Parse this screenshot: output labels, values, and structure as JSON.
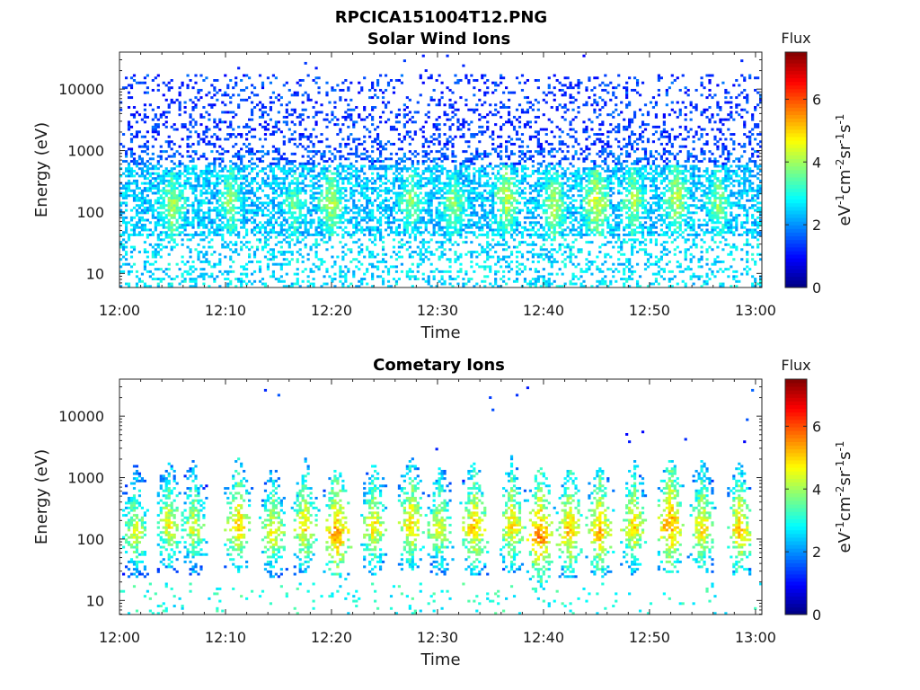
{
  "figure_title": "RPCICA151004T12.PNG",
  "chart_data": [
    {
      "type": "heatmap",
      "title": "Solar Wind Ions",
      "xlabel": "Time",
      "ylabel": "Energy (eV)",
      "x_ticks": [
        "12:00",
        "12:10",
        "12:20",
        "12:30",
        "12:40",
        "12:50",
        "13:00"
      ],
      "x_range_minutes": [
        0,
        60.6
      ],
      "y_scale": "log",
      "y_ticks": [
        10,
        100,
        1000,
        10000
      ],
      "y_tick_labels": [
        "10",
        "100",
        "1000",
        "10000"
      ],
      "y_range": [
        5.9,
        40000
      ],
      "colorbar": {
        "title": "Flux",
        "label_parts": [
          "eV",
          "-1",
          "cm",
          "-2",
          "sr",
          "-1",
          "s",
          "-1"
        ],
        "range": [
          0,
          7.5
        ],
        "ticks": [
          0,
          2,
          4,
          6
        ],
        "tick_labels": [
          "0",
          "2",
          "4",
          "6"
        ],
        "colormap": "jet"
      },
      "description": "sparse blue counts at 1000-30000 eV, cyan-green bands 30-600 eV",
      "bursts": [
        {
          "t": 5.0,
          "e": 120,
          "amp": 4.2
        },
        {
          "t": 10.5,
          "e": 150,
          "amp": 4.0
        },
        {
          "t": 16.5,
          "e": 130,
          "amp": 3.8
        },
        {
          "t": 20.0,
          "e": 140,
          "amp": 4.2
        },
        {
          "t": 27.5,
          "e": 150,
          "amp": 4.0
        },
        {
          "t": 31.5,
          "e": 140,
          "amp": 4.0
        },
        {
          "t": 36.5,
          "e": 160,
          "amp": 4.3
        },
        {
          "t": 41.0,
          "e": 120,
          "amp": 4.2
        },
        {
          "t": 45.0,
          "e": 140,
          "amp": 4.5
        },
        {
          "t": 48.5,
          "e": 150,
          "amp": 4.1
        },
        {
          "t": 52.5,
          "e": 160,
          "amp": 4.3
        },
        {
          "t": 56.5,
          "e": 140,
          "amp": 4.0
        }
      ],
      "seed": 7,
      "mode": "solarwind"
    },
    {
      "type": "heatmap",
      "title": "Cometary Ions",
      "xlabel": "Time",
      "ylabel": "Energy (eV)",
      "x_ticks": [
        "12:00",
        "12:10",
        "12:20",
        "12:30",
        "12:40",
        "12:50",
        "13:00"
      ],
      "x_range_minutes": [
        0,
        60.6
      ],
      "y_scale": "log",
      "y_ticks": [
        10,
        100,
        1000,
        10000
      ],
      "y_tick_labels": [
        "10",
        "100",
        "1000",
        "10000"
      ],
      "y_range": [
        5.9,
        40000
      ],
      "colorbar": {
        "title": "Flux",
        "label_parts": [
          "eV",
          "-1",
          "cm",
          "-2",
          "sr",
          "-1",
          "s",
          "-1"
        ],
        "range": [
          0,
          7.5
        ],
        "ticks": [
          0,
          2,
          4,
          6
        ],
        "tick_labels": [
          "0",
          "2",
          "4",
          "6"
        ],
        "colormap": "jet"
      },
      "description": "periodic bursts peaking near 100-300 eV with yellow-orange cores",
      "bursts": [
        {
          "t": 1.5,
          "e": 130,
          "amp": 4.6
        },
        {
          "t": 4.7,
          "e": 160,
          "amp": 4.8
        },
        {
          "t": 7.0,
          "e": 150,
          "amp": 4.6
        },
        {
          "t": 11.2,
          "e": 160,
          "amp": 5.2
        },
        {
          "t": 14.5,
          "e": 130,
          "amp": 4.8
        },
        {
          "t": 17.5,
          "e": 150,
          "amp": 5.0
        },
        {
          "t": 20.5,
          "e": 120,
          "amp": 5.6
        },
        {
          "t": 24.0,
          "e": 150,
          "amp": 4.9
        },
        {
          "t": 27.5,
          "e": 170,
          "amp": 5.1
        },
        {
          "t": 30.2,
          "e": 140,
          "amp": 4.7
        },
        {
          "t": 33.5,
          "e": 150,
          "amp": 5.2
        },
        {
          "t": 37.0,
          "e": 160,
          "amp": 5.0
        },
        {
          "t": 39.7,
          "e": 110,
          "amp": 5.7
        },
        {
          "t": 42.5,
          "e": 130,
          "amp": 5.3
        },
        {
          "t": 45.3,
          "e": 130,
          "amp": 5.3
        },
        {
          "t": 48.5,
          "e": 150,
          "amp": 5.0
        },
        {
          "t": 52.0,
          "e": 160,
          "amp": 5.6
        },
        {
          "t": 55.0,
          "e": 150,
          "amp": 5.0
        },
        {
          "t": 58.5,
          "e": 130,
          "amp": 5.2
        }
      ],
      "seed": 23,
      "mode": "cometary"
    }
  ]
}
